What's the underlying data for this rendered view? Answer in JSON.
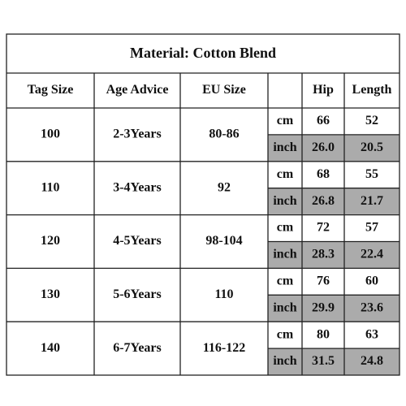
{
  "title": "Material: Cotton Blend",
  "headers": [
    "Tag Size",
    "Age Advice",
    "EU Size",
    "Hip",
    "Length"
  ],
  "rows": [
    {
      "tag": "100",
      "age": "2-3Years",
      "eu": "80-86",
      "cm": {
        "unit": "cm",
        "hip": "66",
        "length": "52"
      },
      "inch": {
        "unit": "inch",
        "hip": "26.0",
        "length": "20.5"
      }
    },
    {
      "tag": "110",
      "age": "3-4Years",
      "eu": "92",
      "cm": {
        "unit": "cm",
        "hip": "68",
        "length": "55"
      },
      "inch": {
        "unit": "inch",
        "hip": "26.8",
        "length": "21.7"
      }
    },
    {
      "tag": "120",
      "age": "4-5Years",
      "eu": "98-104",
      "cm": {
        "unit": "cm",
        "hip": "72",
        "length": "57"
      },
      "inch": {
        "unit": "inch",
        "hip": "28.3",
        "length": "22.4"
      }
    },
    {
      "tag": "130",
      "age": "5-6Years",
      "eu": "110",
      "cm": {
        "unit": "cm",
        "hip": "76",
        "length": "60"
      },
      "inch": {
        "unit": "inch",
        "hip": "29.9",
        "length": "23.6"
      }
    },
    {
      "tag": "140",
      "age": "6-7Years",
      "eu": "116-122",
      "cm": {
        "unit": "cm",
        "hip": "80",
        "length": "63"
      },
      "inch": {
        "unit": "inch",
        "hip": "31.5",
        "length": "24.8"
      }
    }
  ]
}
